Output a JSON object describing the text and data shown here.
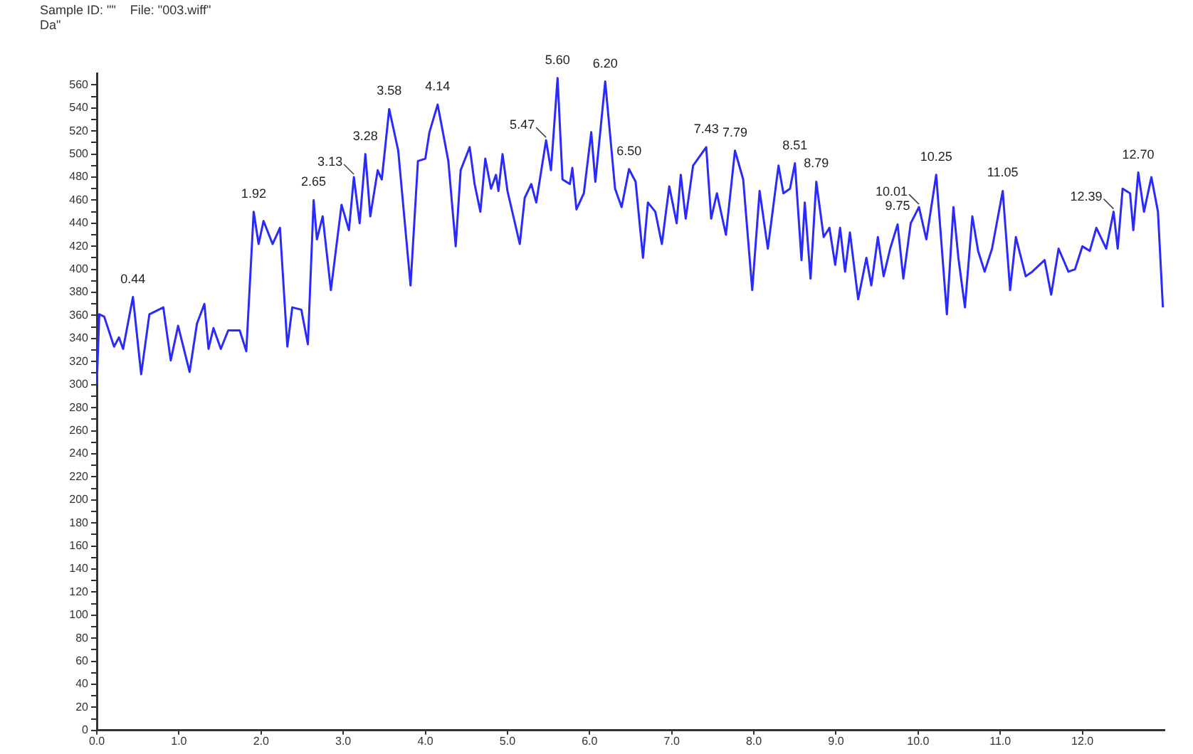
{
  "chart_data": {
    "type": "line",
    "title": "Sample ID: \"\"    File: \"003.wiff\"",
    "subtitle": "Da\"",
    "x": [
      0,
      0.03,
      0.09,
      0.21,
      0.27,
      0.32,
      0.44,
      0.54,
      0.64,
      0.81,
      0.9,
      0.99,
      1.13,
      1.22,
      1.31,
      1.36,
      1.42,
      1.51,
      1.6,
      1.74,
      1.82,
      1.91,
      1.97,
      2.03,
      2.14,
      2.23,
      2.32,
      2.38,
      2.49,
      2.57,
      2.64,
      2.68,
      2.75,
      2.85,
      2.98,
      3.07,
      3.13,
      3.2,
      3.27,
      3.33,
      3.42,
      3.47,
      3.56,
      3.67,
      3.82,
      3.91,
      4.0,
      4.05,
      4.15,
      4.28,
      4.37,
      4.43,
      4.54,
      4.6,
      4.67,
      4.73,
      4.8,
      4.86,
      4.89,
      4.94,
      5.0,
      5.15,
      5.21,
      5.29,
      5.35,
      5.47,
      5.53,
      5.61,
      5.67,
      5.76,
      5.79,
      5.84,
      5.93,
      6.02,
      6.07,
      6.19,
      6.31,
      6.39,
      6.48,
      6.56,
      6.65,
      6.71,
      6.8,
      6.88,
      6.97,
      7.06,
      7.11,
      7.17,
      7.26,
      7.42,
      7.48,
      7.55,
      7.66,
      7.77,
      7.87,
      7.98,
      8.07,
      8.17,
      8.3,
      8.36,
      8.44,
      8.5,
      8.58,
      8.62,
      8.69,
      8.76,
      8.85,
      8.92,
      8.99,
      9.05,
      9.11,
      9.17,
      9.27,
      9.37,
      9.43,
      9.51,
      9.58,
      9.66,
      9.75,
      9.82,
      9.91,
      10.01,
      10.1,
      10.22,
      10.35,
      10.43,
      10.49,
      10.57,
      10.66,
      10.73,
      10.81,
      10.9,
      11.03,
      11.12,
      11.19,
      11.31,
      11.39,
      11.54,
      11.62,
      11.71,
      11.83,
      11.91,
      12.0,
      12.09,
      12.17,
      12.29,
      12.38,
      12.43,
      12.49,
      12.58,
      12.62,
      12.68,
      12.75,
      12.84,
      12.92,
      12.98
    ],
    "series": [
      {
        "color": "#2a2aff",
        "values": [
          301,
          361,
          359,
          333,
          341,
          331,
          376,
          309,
          361,
          367,
          321,
          351,
          311,
          353,
          370,
          331,
          349,
          331,
          347,
          347,
          329,
          450,
          422,
          442,
          422,
          436,
          333,
          367,
          365,
          335,
          460,
          426,
          446,
          382,
          456,
          434,
          480,
          440,
          500,
          446,
          486,
          478,
          539,
          503,
          386,
          494,
          496,
          519,
          543,
          494,
          420,
          486,
          506,
          474,
          450,
          496,
          470,
          482,
          468,
          500,
          468,
          422,
          462,
          474,
          458,
          512,
          486,
          566,
          478,
          474,
          488,
          452,
          466,
          519,
          476,
          563,
          470,
          454,
          487,
          476,
          410,
          458,
          450,
          422,
          472,
          440,
          482,
          444,
          490,
          506,
          444,
          466,
          430,
          503,
          478,
          382,
          468,
          418,
          490,
          466,
          470,
          492,
          408,
          458,
          392,
          476,
          428,
          436,
          404,
          436,
          398,
          432,
          374,
          410,
          386,
          428,
          394,
          418,
          439,
          392,
          440,
          454,
          426,
          482,
          361,
          454,
          410,
          367,
          446,
          416,
          398,
          418,
          468,
          382,
          428,
          394,
          398,
          408,
          378,
          418,
          398,
          400,
          420,
          416,
          436,
          418,
          450,
          418,
          470,
          466,
          434,
          484,
          450,
          480,
          450,
          367
        ]
      }
    ],
    "xlim": [
      0,
      13
    ],
    "ylim": [
      0,
      570
    ],
    "xticks": [
      {
        "value": 0,
        "label": "0.0"
      },
      {
        "value": 1,
        "label": "1.0"
      },
      {
        "value": 2,
        "label": "2.0"
      },
      {
        "value": 3,
        "label": "3.0"
      },
      {
        "value": 4,
        "label": "4.0"
      },
      {
        "value": 5,
        "label": "5.0"
      },
      {
        "value": 6,
        "label": "6.0"
      },
      {
        "value": 7,
        "label": "7.0"
      },
      {
        "value": 8,
        "label": "8.0"
      },
      {
        "value": 9,
        "label": "9.0"
      },
      {
        "value": 10,
        "label": "10.0"
      },
      {
        "value": 11,
        "label": "11.0"
      },
      {
        "value": 12,
        "label": "12.0"
      }
    ],
    "yticks": [
      0,
      {
        "value": 10,
        "label": null
      },
      20,
      {
        "value": 30,
        "label": null
      },
      40,
      {
        "value": 50,
        "label": null
      },
      60,
      {
        "value": 70,
        "label": null
      },
      80,
      {
        "value": 90,
        "label": null
      },
      100,
      {
        "value": 110,
        "label": null
      },
      120,
      {
        "value": 130,
        "label": null
      },
      140,
      {
        "value": 150,
        "label": null
      },
      160,
      {
        "value": 170,
        "label": null
      },
      180,
      {
        "value": 190,
        "label": null
      },
      200,
      {
        "value": 210,
        "label": null
      },
      220,
      {
        "value": 230,
        "label": null
      },
      240,
      {
        "value": 250,
        "label": null
      },
      260,
      {
        "value": 270,
        "label": null
      },
      280,
      {
        "value": 290,
        "label": null
      },
      300,
      {
        "value": 310,
        "label": null
      },
      320,
      {
        "value": 330,
        "label": null
      },
      340,
      {
        "value": 350,
        "label": null
      },
      360,
      {
        "value": 370,
        "label": null
      },
      380,
      {
        "value": 390,
        "label": null
      },
      400,
      {
        "value": 410,
        "label": null
      },
      420,
      {
        "value": 430,
        "label": null
      },
      440,
      {
        "value": 450,
        "label": null
      },
      460,
      {
        "value": 470,
        "label": null
      },
      480,
      {
        "value": 490,
        "label": null
      },
      500,
      {
        "value": 510,
        "label": null
      },
      520,
      {
        "value": 530,
        "label": null
      },
      540,
      {
        "value": 550,
        "label": null
      },
      560
    ],
    "marker": "none",
    "line_style": "solid",
    "annotations": [
      {
        "text": "0.44",
        "x": 0.44,
        "y": 376
      },
      {
        "text": "1.92",
        "x": 1.91,
        "y": 450
      },
      {
        "text": "2.65",
        "x": 2.64,
        "y": 460
      },
      {
        "text": "3.13",
        "x": 3.13,
        "y": 480
      },
      {
        "text": "3.28",
        "x": 3.27,
        "y": 500
      },
      {
        "text": "3.58",
        "x": 3.56,
        "y": 539
      },
      {
        "text": "4.14",
        "x": 4.15,
        "y": 543
      },
      {
        "text": "5.47",
        "x": 5.47,
        "y": 512
      },
      {
        "text": "5.60",
        "x": 5.61,
        "y": 566
      },
      {
        "text": "6.20",
        "x": 6.19,
        "y": 563
      },
      {
        "text": "6.50",
        "x": 6.48,
        "y": 487
      },
      {
        "text": "7.43",
        "x": 7.42,
        "y": 506
      },
      {
        "text": "7.79",
        "x": 7.77,
        "y": 503
      },
      {
        "text": "8.51",
        "x": 8.5,
        "y": 492
      },
      {
        "text": "8.79",
        "x": 8.76,
        "y": 476
      },
      {
        "text": "9.75",
        "x": 9.75,
        "y": 439
      },
      {
        "text": "10.01",
        "x": 10.01,
        "y": 454
      },
      {
        "text": "10.25",
        "x": 10.22,
        "y": 482
      },
      {
        "text": "11.05",
        "x": 11.03,
        "y": 468
      },
      {
        "text": "12.39",
        "x": 12.38,
        "y": 450
      },
      {
        "text": "12.70",
        "x": 12.68,
        "y": 484
      }
    ]
  }
}
